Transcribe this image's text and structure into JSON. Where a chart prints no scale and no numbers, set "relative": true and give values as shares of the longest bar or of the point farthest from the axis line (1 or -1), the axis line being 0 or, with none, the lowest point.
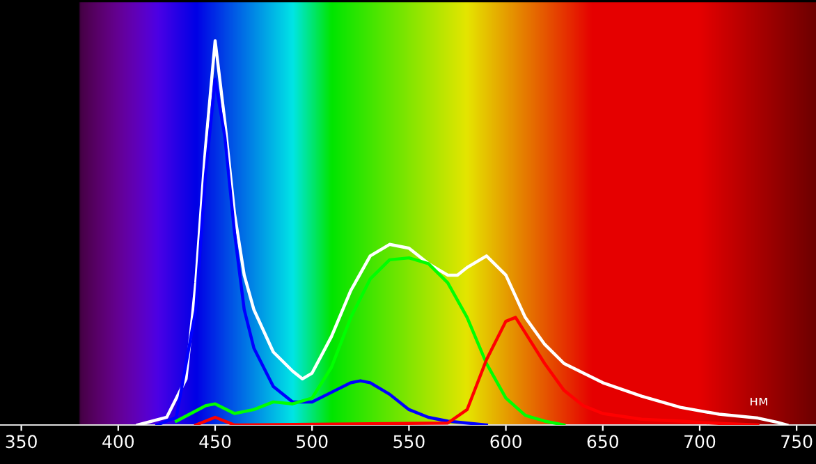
{
  "chart_data": {
    "type": "line",
    "relative": true,
    "xlabel": "нм",
    "xlim": [
      339,
      760
    ],
    "xticks": [
      350,
      400,
      450,
      500,
      550,
      600,
      650,
      700,
      750
    ],
    "marker": "none",
    "line_style": "solid",
    "series": [
      {
        "color": "#ffffff",
        "x": [
          410,
          425,
          435,
          440,
          445,
          450,
          455,
          460,
          465,
          470,
          480,
          490,
          495,
          500,
          510,
          520,
          530,
          540,
          550,
          560,
          570,
          575,
          580,
          590,
          600,
          610,
          620,
          630,
          650,
          670,
          690,
          710,
          730,
          740,
          745
        ],
        "values": [
          0,
          0.02,
          0.12,
          0.37,
          0.72,
          1.0,
          0.79,
          0.55,
          0.39,
          0.3,
          0.19,
          0.14,
          0.12,
          0.135,
          0.23,
          0.35,
          0.44,
          0.47,
          0.46,
          0.42,
          0.39,
          0.39,
          0.41,
          0.44,
          0.39,
          0.28,
          0.21,
          0.16,
          0.11,
          0.075,
          0.046,
          0.028,
          0.018,
          0.007,
          0
        ]
      },
      {
        "color": "#0000ff",
        "x": [
          420,
          430,
          440,
          445,
          450,
          455,
          460,
          465,
          470,
          480,
          490,
          500,
          510,
          520,
          525,
          530,
          540,
          550,
          560,
          570,
          590
        ],
        "values": [
          0,
          0.02,
          0.3,
          0.65,
          0.9,
          0.75,
          0.5,
          0.3,
          0.2,
          0.1,
          0.06,
          0.06,
          0.085,
          0.11,
          0.115,
          0.11,
          0.08,
          0.04,
          0.02,
          0.01,
          0
        ]
      },
      {
        "color": "#00ff00",
        "x": [
          430,
          445,
          450,
          460,
          470,
          480,
          490,
          500,
          510,
          520,
          530,
          540,
          550,
          560,
          570,
          580,
          590,
          600,
          610,
          620,
          630
        ],
        "values": [
          0.01,
          0.05,
          0.055,
          0.03,
          0.04,
          0.06,
          0.055,
          0.07,
          0.15,
          0.28,
          0.38,
          0.43,
          0.435,
          0.42,
          0.37,
          0.28,
          0.16,
          0.07,
          0.025,
          0.01,
          0
        ]
      },
      {
        "color": "#ff0000",
        "x": [
          440,
          450,
          460,
          570,
          580,
          590,
          600,
          605,
          610,
          620,
          630,
          640,
          650,
          670,
          690,
          710,
          730
        ],
        "values": [
          0,
          0.02,
          0,
          0.005,
          0.04,
          0.17,
          0.27,
          0.28,
          0.24,
          0.16,
          0.09,
          0.05,
          0.03,
          0.015,
          0.01,
          0.004,
          0
        ]
      }
    ]
  }
}
